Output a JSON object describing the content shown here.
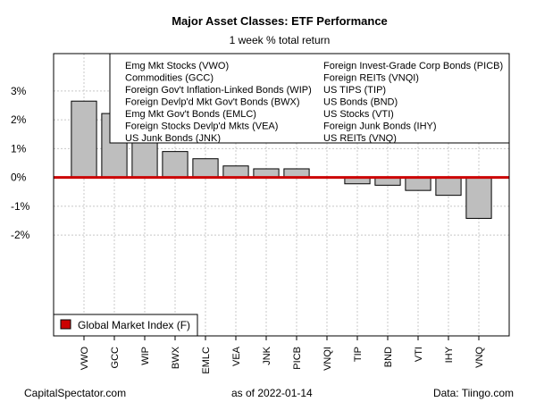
{
  "chart_data": {
    "type": "bar",
    "title": "Major Asset Classes: ETF Performance",
    "subtitle": "1 week % total return",
    "categories": [
      "VWO",
      "GCC",
      "WIP",
      "BWX",
      "EMLC",
      "VEA",
      "JNK",
      "PICB",
      "VNQI",
      "TIP",
      "BND",
      "VTI",
      "IHY",
      "VNQ"
    ],
    "values": [
      2.65,
      2.22,
      1.4,
      0.9,
      0.65,
      0.4,
      0.3,
      0.3,
      0.0,
      -0.22,
      -0.27,
      -0.45,
      -0.62,
      -1.42
    ],
    "ylim": [
      -5.5,
      4.3
    ],
    "yticks": [
      3,
      2,
      1,
      0,
      -1,
      -2
    ],
    "ytick_labels": [
      "3%",
      "2%",
      "1%",
      "0%",
      "-1%",
      "-2%"
    ],
    "reference_line": {
      "value": 0,
      "label": "Global Market Index (F)",
      "color": "#cc0000"
    },
    "legend_left": [
      "Emg Mkt Stocks (VWO)",
      "Commodities (GCC)",
      "Foreign Gov't Inflation-Linked Bonds (WIP)",
      "Foreign Devlp'd Mkt Gov't Bonds (BWX)",
      "Emg Mkt Gov't Bonds (EMLC)",
      "Foreign Stocks Devlp'd Mkts (VEA)",
      "US Junk Bonds (JNK)"
    ],
    "legend_right": [
      "Foreign Invest-Grade Corp Bonds (PICB)",
      "Foreign REITs (VNQI)",
      "US TIPS (TIP)",
      "US Bonds (BND)",
      "US Stocks (VTI)",
      "Foreign Junk Bonds (IHY)",
      "US REITs (VNQ)"
    ],
    "grid": true,
    "bar_color": "#bebebe"
  },
  "footer": {
    "left": "CapitalSpectator.com",
    "middle": "as of   2022-01-14",
    "right": "Data: Tiingo.com"
  }
}
